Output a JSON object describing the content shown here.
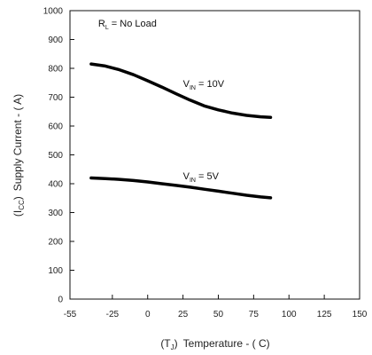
{
  "chart_data": {
    "type": "line",
    "title": "",
    "xlabel": "Temperature - (  C)",
    "xlabel_prefix": "(T",
    "xlabel_prefix_sub": "J",
    "xlabel_prefix_close": ")",
    "ylabel": "Supply Current - (  A)",
    "ylabel_prefix": "(I",
    "ylabel_prefix_sub": "CC",
    "ylabel_prefix_close": ")",
    "xlim": [
      -55,
      150
    ],
    "ylim": [
      0,
      1000
    ],
    "xticks": [
      -55,
      -25,
      0,
      25,
      50,
      75,
      100,
      125,
      150
    ],
    "yticks": [
      0,
      100,
      200,
      300,
      400,
      500,
      600,
      700,
      800,
      900,
      1000
    ],
    "grid": false,
    "annotations": [
      {
        "id": "load",
        "main": "R",
        "sub": "L",
        "rest": " = No Load",
        "x": -35,
        "y": 945
      },
      {
        "id": "v10",
        "main": "V",
        "sub": "IN",
        "rest": " = 10V",
        "x": 25,
        "y": 735
      },
      {
        "id": "v5",
        "main": "V",
        "sub": "IN",
        "rest": " = 5V",
        "x": 25,
        "y": 415
      }
    ],
    "series": [
      {
        "id": "v10",
        "x": [
          -40,
          -30,
          -20,
          -10,
          0,
          10,
          20,
          30,
          40,
          50,
          60,
          70,
          80,
          87
        ],
        "y": [
          815,
          808,
          795,
          778,
          757,
          735,
          712,
          690,
          670,
          656,
          645,
          637,
          632,
          630
        ]
      },
      {
        "id": "v5",
        "x": [
          -40,
          -30,
          -20,
          -10,
          0,
          10,
          20,
          30,
          40,
          50,
          60,
          70,
          80,
          87
        ],
        "y": [
          420,
          418,
          415,
          411,
          406,
          400,
          394,
          388,
          381,
          374,
          367,
          360,
          354,
          351
        ]
      }
    ]
  }
}
